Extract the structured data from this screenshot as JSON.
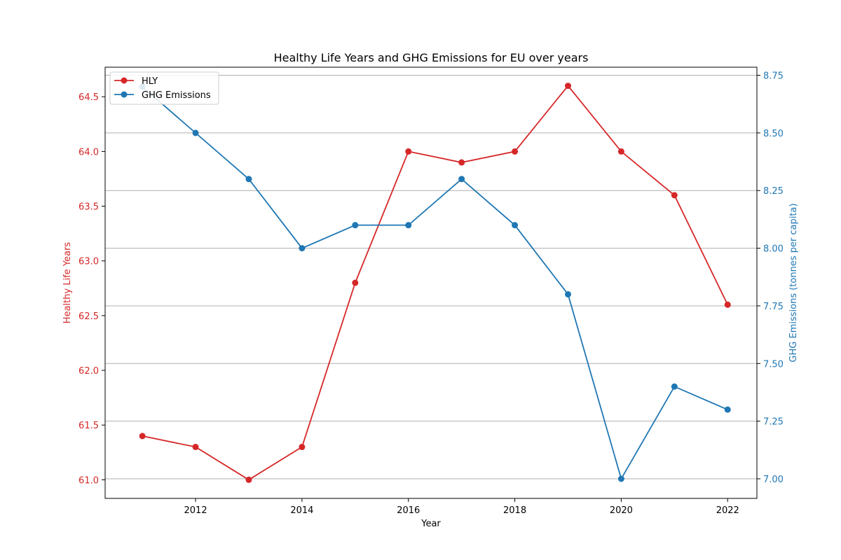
{
  "chart_data": {
    "type": "line",
    "title": "Healthy Life Years and GHG Emissions for EU over years",
    "xlabel": "Year",
    "x": [
      2011,
      2012,
      2013,
      2014,
      2015,
      2016,
      2017,
      2018,
      2019,
      2020,
      2021,
      2022
    ],
    "xlim": [
      2010.3,
      2022.55
    ],
    "x_ticks": [
      2012,
      2014,
      2016,
      2018,
      2020,
      2022
    ],
    "x_tick_labels": [
      "2012",
      "2014",
      "2016",
      "2018",
      "2020",
      "2022"
    ],
    "left_axis": {
      "label": "Healthy Life Years",
      "color": "#d62728",
      "ylim": [
        60.83,
        64.77
      ],
      "ticks": [
        61.0,
        61.5,
        62.0,
        62.5,
        63.0,
        63.5,
        64.0,
        64.5
      ],
      "tick_labels": [
        "61.0",
        "61.5",
        "62.0",
        "62.5",
        "63.0",
        "63.5",
        "64.0",
        "64.5"
      ]
    },
    "right_axis": {
      "label": "GHG Emissions (tonnes per capita)",
      "color": "#1f77b4",
      "ylim": [
        6.915,
        8.785
      ],
      "ticks": [
        7.0,
        7.25,
        7.5,
        7.75,
        8.0,
        8.25,
        8.5,
        8.75
      ],
      "tick_labels": [
        "7.00",
        "7.25",
        "7.50",
        "7.75",
        "8.00",
        "8.25",
        "8.50",
        "8.75"
      ]
    },
    "grid": "horizontal, right axis",
    "legend_position": "top-left",
    "series": [
      {
        "name": "HLY",
        "axis": "left",
        "color": "#d62728",
        "values": [
          61.4,
          61.3,
          61.0,
          61.3,
          62.8,
          64.0,
          63.9,
          64.0,
          64.6,
          64.0,
          63.6,
          62.6
        ]
      },
      {
        "name": "GHG Emissions",
        "axis": "right",
        "color": "#1f77b4",
        "values": [
          8.7,
          8.5,
          8.3,
          8.0,
          8.1,
          8.1,
          8.3,
          8.1,
          7.8,
          7.0,
          7.4,
          7.3
        ]
      }
    ]
  }
}
